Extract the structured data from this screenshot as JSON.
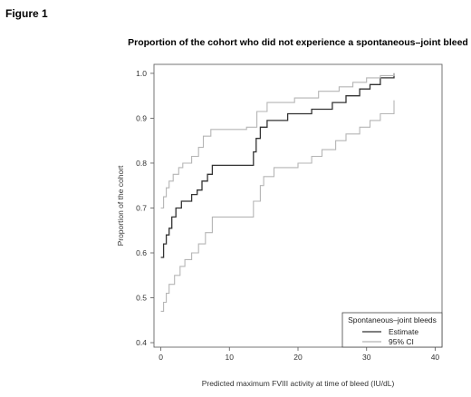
{
  "figure_label": "Figure 1",
  "chart_data": {
    "type": "line",
    "step": true,
    "title": "Proportion of the cohort who did not experience a spontaneous–joint bleed",
    "xlabel": "Predicted maximum FVIII activity at time of bleed (IU/dL)",
    "ylabel": "Proportion of the cohort",
    "xlim": [
      -1,
      41
    ],
    "ylim": [
      0.39,
      1.02
    ],
    "xticks": [
      "0",
      "10",
      "20",
      "30",
      "40"
    ],
    "yticks": [
      "0.4",
      "0.5",
      "0.6",
      "0.7",
      "0.8",
      "0.9",
      "1.0"
    ],
    "grid": false,
    "legend": {
      "title": "Spontaneous–joint bleeds",
      "position": "bottom-right",
      "entries": [
        "Estimate",
        "95% CI"
      ]
    },
    "series": [
      {
        "name": "Estimate",
        "color": "#333333",
        "x": [
          0,
          0.4,
          0.8,
          1.2,
          1.6,
          2.2,
          3,
          4.5,
          5.3,
          6,
          6.8,
          7.5,
          13.5,
          13.9,
          14.5,
          15.5,
          18.5,
          22,
          25,
          27,
          29,
          30.5,
          32,
          34
        ],
        "y": [
          0.59,
          0.62,
          0.64,
          0.655,
          0.68,
          0.7,
          0.715,
          0.73,
          0.74,
          0.76,
          0.775,
          0.795,
          0.825,
          0.855,
          0.88,
          0.895,
          0.91,
          0.92,
          0.935,
          0.95,
          0.965,
          0.975,
          0.99,
          1.0
        ]
      },
      {
        "name": "95% CI upper",
        "color": "#b5b5b5",
        "x": [
          0,
          0.4,
          0.8,
          1.2,
          1.8,
          2.6,
          3.2,
          4.5,
          5.5,
          6.2,
          7.3,
          12.5,
          14,
          15.5,
          19.5,
          23,
          26,
          28,
          30,
          32,
          34
        ],
        "y": [
          0.7,
          0.725,
          0.745,
          0.76,
          0.775,
          0.79,
          0.8,
          0.815,
          0.835,
          0.86,
          0.875,
          0.88,
          0.915,
          0.935,
          0.945,
          0.96,
          0.97,
          0.98,
          0.99,
          0.995,
          1.0
        ]
      },
      {
        "name": "95% CI lower",
        "color": "#b5b5b5",
        "x": [
          0,
          0.4,
          0.8,
          1.2,
          2,
          2.8,
          3.5,
          4.5,
          5.5,
          6.5,
          7.5,
          13.5,
          14.5,
          15,
          16.5,
          20,
          22,
          23.5,
          25.5,
          27,
          29,
          30.5,
          32,
          34
        ],
        "y": [
          0.47,
          0.49,
          0.51,
          0.53,
          0.55,
          0.57,
          0.585,
          0.6,
          0.62,
          0.645,
          0.68,
          0.715,
          0.75,
          0.77,
          0.79,
          0.8,
          0.815,
          0.83,
          0.85,
          0.865,
          0.88,
          0.895,
          0.91,
          0.94
        ]
      }
    ]
  }
}
